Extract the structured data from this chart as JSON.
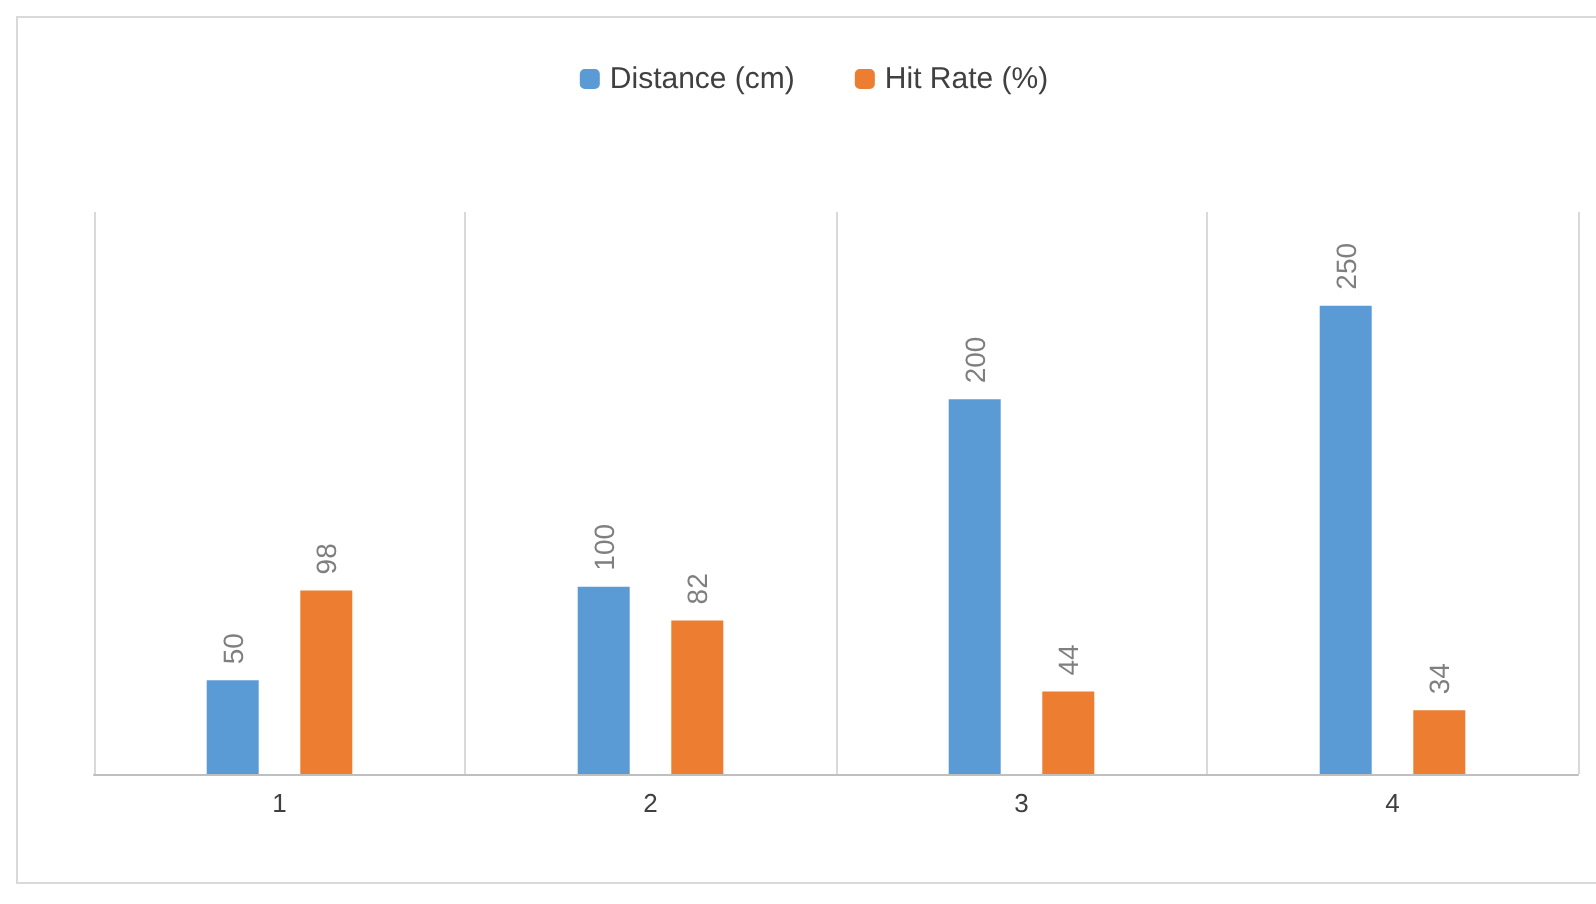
{
  "chart_data": {
    "type": "bar",
    "categories": [
      "1",
      "2",
      "3",
      "4"
    ],
    "series": [
      {
        "name": "Distance (cm)",
        "color": "#5b9bd5",
        "values": [
          50,
          100,
          200,
          250
        ]
      },
      {
        "name": "Hit Rate (%)",
        "color": "#ed7d31",
        "values": [
          98,
          82,
          44,
          34
        ]
      }
    ],
    "data_labels": true,
    "grid": "x",
    "legend": "top"
  }
}
